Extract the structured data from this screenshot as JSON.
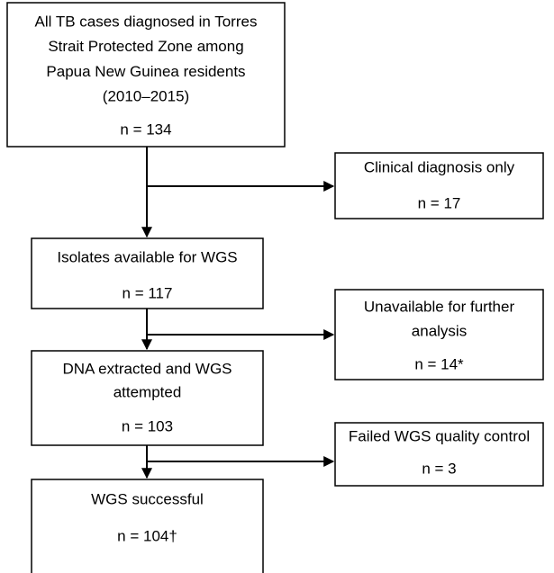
{
  "nodes": [
    {
      "lines": [
        "All TB cases diagnosed in Torres",
        "Strait Protected Zone among",
        "Papua New Guinea residents",
        "(2010–2015)"
      ],
      "count": "n = 134"
    },
    {
      "lines": [
        "Clinical diagnosis only"
      ],
      "count": "n = 17"
    },
    {
      "lines": [
        "Isolates available for WGS"
      ],
      "count": "n = 117"
    },
    {
      "lines": [
        "Unavailable for further",
        "analysis"
      ],
      "count": "n = 14*"
    },
    {
      "lines": [
        "DNA extracted and WGS",
        "attempted"
      ],
      "count": "n = 103"
    },
    {
      "lines": [
        "Failed WGS quality control"
      ],
      "count": "n = 3"
    },
    {
      "lines": [
        "WGS successful"
      ],
      "count": "n = 104†"
    }
  ]
}
